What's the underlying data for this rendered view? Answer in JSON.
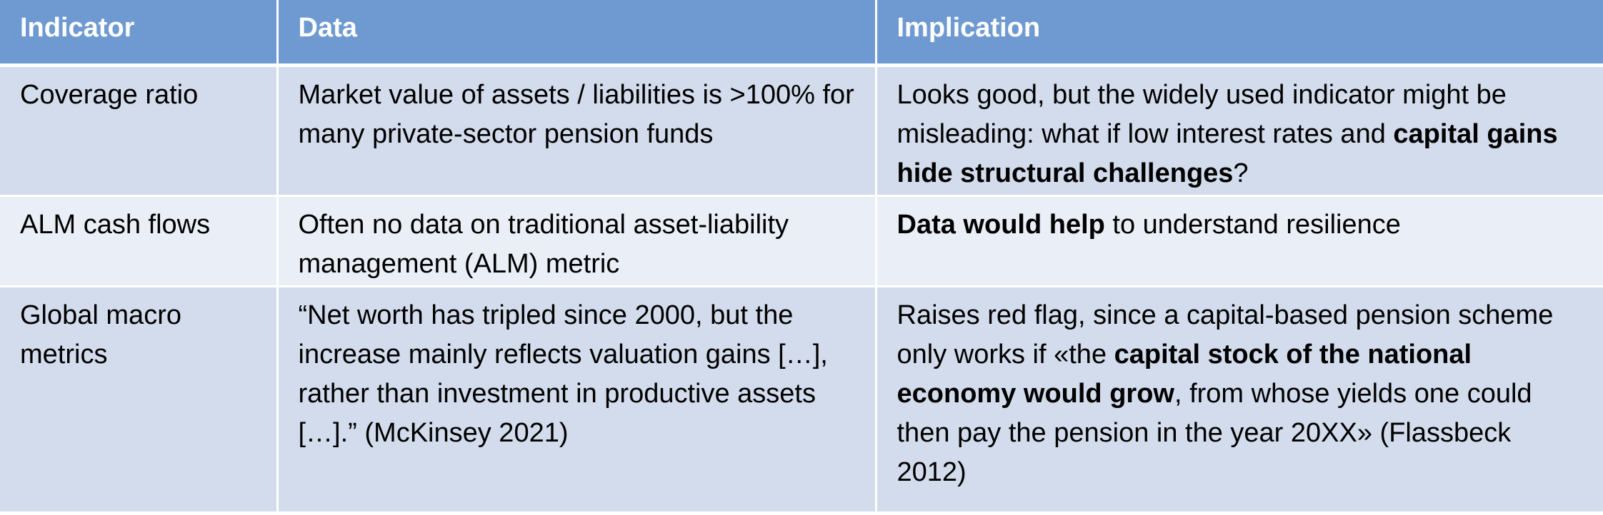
{
  "table": {
    "headers": {
      "indicator": "Indicator",
      "data": "Data",
      "implication": "Implication"
    },
    "rows": [
      {
        "indicator": "Coverage ratio",
        "data": "Market value of assets / liabilities is >100% for many private-sector pension funds",
        "implication": {
          "part1": "Looks good, but the widely used indicator might be misleading: what if low interest rates and ",
          "bold1": "capital gains hide structural challenges",
          "part2": "?"
        }
      },
      {
        "indicator": "ALM cash flows",
        "data": "Often no data on traditional asset-liability management (ALM) metric",
        "implication": {
          "bold1": "Data would help",
          "part1": " to understand resilience"
        }
      },
      {
        "indicator": "Global macro metrics",
        "data": "“Net worth has tripled since 2000, but the increase mainly reflects valuation gains […], rather than investment in productive assets […].” (McKinsey 2021)",
        "implication": {
          "part1": "Raises red flag, since a capital-based pension scheme only works if «the ",
          "bold1": "capital stock of the national economy would grow",
          "part2": ", from whose yields one could then pay the pension in the year 20XX» (Flassbeck 2012)"
        }
      }
    ]
  },
  "colors": {
    "header_bg": "#6f9ad1",
    "row_dark_bg": "#d3dcec",
    "row_light_bg": "#eaeef6",
    "header_text": "#ffffff",
    "body_text": "#000000"
  }
}
